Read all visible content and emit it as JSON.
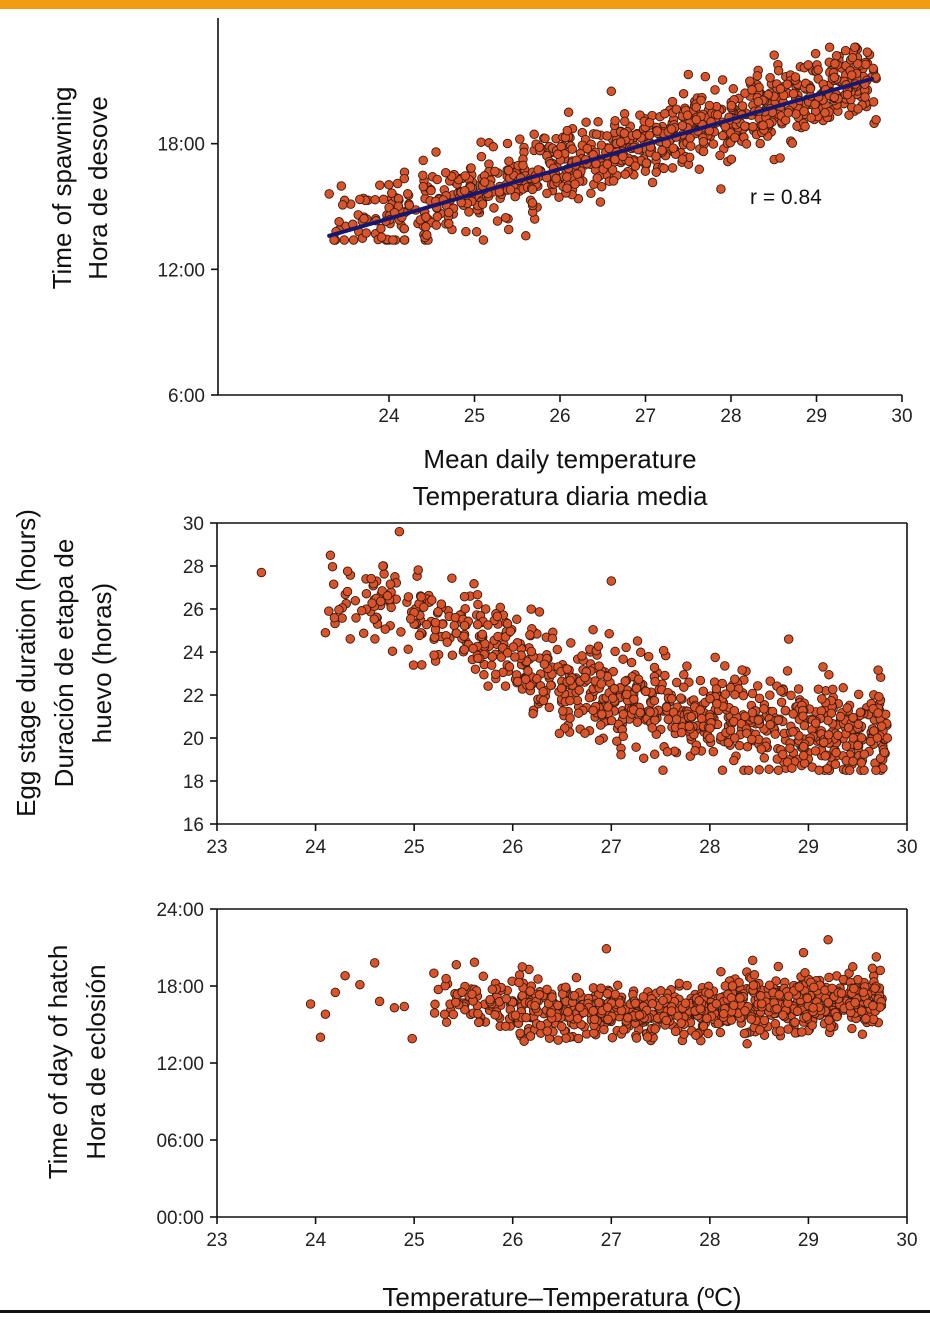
{
  "colors": {
    "top_bar": "#f39c12",
    "bottom_rule": "#111111",
    "marker_fill": "#d9542a",
    "marker_stroke": "#3a1a0e",
    "trend_line": "#16186f",
    "axis": "#111111"
  },
  "chart_data": [
    {
      "type": "scatter",
      "ylabel": [
        "Time of spawning",
        "Hora de desove"
      ],
      "xlabel": [
        "Mean daily temperature",
        "Temperatura diaria media"
      ],
      "xlim": [
        22.0,
        30.0
      ],
      "ylim": [
        6.0,
        24.0
      ],
      "xticks": [
        24,
        25,
        26,
        27,
        28,
        29,
        30
      ],
      "xtick_labels": [
        "24",
        "25",
        "26",
        "27",
        "28",
        "29",
        "30"
      ],
      "yticks": [
        6,
        12,
        18
      ],
      "ytick_labels": [
        "6:00",
        "12:00",
        "18:00"
      ],
      "annotation": "r = 0.84",
      "trend_line": {
        "x": [
          23.3,
          29.65
        ],
        "y": [
          13.6,
          21.1
        ]
      },
      "points": {
        "count": 950,
        "seed": 11,
        "model": {
          "kind": "linear",
          "slope": 1.16,
          "intercept": -13.3
        },
        "x_range": [
          23.3,
          29.7
        ],
        "noise": 0.85,
        "y_clip": [
          13.4,
          22.6
        ],
        "outliers": [
          [
            23.3,
            15.6
          ],
          [
            24.1,
            16.1
          ],
          [
            24.4,
            17.2
          ],
          [
            24.55,
            17.6
          ],
          [
            24.9,
            13.8
          ],
          [
            25.4,
            13.9
          ],
          [
            25.6,
            13.6
          ],
          [
            26.1,
            19.5
          ],
          [
            26.6,
            20.5
          ],
          [
            27.5,
            21.3
          ],
          [
            27.7,
            21.2
          ]
        ]
      }
    },
    {
      "type": "scatter",
      "ylabel": [
        "Egg stage duration (hours)",
        "Duración de etapa de",
        "huevo (horas)"
      ],
      "xlabel": [],
      "xlim": [
        23.0,
        30.0
      ],
      "ylim": [
        16.0,
        30.0
      ],
      "xticks": [
        23,
        24,
        25,
        26,
        27,
        28,
        29,
        30
      ],
      "xtick_labels": [
        "23",
        "24",
        "25",
        "26",
        "27",
        "28",
        "29",
        "30"
      ],
      "yticks": [
        16,
        18,
        20,
        22,
        24,
        26,
        28,
        30
      ],
      "ytick_labels": [
        "16",
        "18",
        "20",
        "22",
        "24",
        "26",
        "28",
        "30"
      ],
      "points": {
        "count": 950,
        "seed": 29,
        "model": {
          "kind": "piecewise",
          "knots": [
            [
              23.4,
              27.5
            ],
            [
              24.5,
              26.5
            ],
            [
              25.5,
              25.0
            ],
            [
              26.5,
              22.6
            ],
            [
              27.5,
              21.4
            ],
            [
              28.5,
              20.6
            ],
            [
              29.5,
              20.1
            ]
          ]
        },
        "x_range": [
          24.1,
          29.8
        ],
        "noise": 1.05,
        "y_clip": [
          18.5,
          28.0
        ],
        "outliers": [
          [
            23.45,
            27.7
          ],
          [
            24.15,
            28.5
          ],
          [
            24.85,
            29.6
          ],
          [
            24.1,
            24.9
          ],
          [
            27.0,
            27.3
          ],
          [
            28.8,
            24.6
          ],
          [
            29.7,
            20.0
          ],
          [
            29.8,
            20.0
          ]
        ]
      }
    },
    {
      "type": "scatter",
      "ylabel": [
        "Time of day of hatch",
        "Hora de eclosión"
      ],
      "xlabel": [
        "Temperature–Temperatura (ºC)"
      ],
      "xlim": [
        23.0,
        30.0
      ],
      "ylim": [
        0.0,
        24.0
      ],
      "xticks": [
        23,
        24,
        25,
        26,
        27,
        28,
        29,
        30
      ],
      "xtick_labels": [
        "23",
        "24",
        "25",
        "26",
        "27",
        "28",
        "29",
        "30"
      ],
      "yticks": [
        0,
        6,
        12,
        18,
        24
      ],
      "ytick_labels": [
        "00:00",
        "06:00",
        "12:00",
        "18:00",
        "24:00"
      ],
      "points": {
        "count": 1000,
        "seed": 47,
        "model": {
          "kind": "piecewise",
          "knots": [
            [
              23.9,
              17.0
            ],
            [
              25.5,
              16.8
            ],
            [
              26.5,
              16.0
            ],
            [
              27.5,
              16.0
            ],
            [
              28.5,
              16.7
            ],
            [
              29.7,
              16.8
            ]
          ]
        },
        "x_range": [
          25.2,
          29.75
        ],
        "noise": 1.05,
        "y_clip": [
          13.5,
          20.8
        ],
        "outliers": [
          [
            23.95,
            16.6
          ],
          [
            24.05,
            14.0
          ],
          [
            24.1,
            15.8
          ],
          [
            24.2,
            17.5
          ],
          [
            24.3,
            18.8
          ],
          [
            24.45,
            18.1
          ],
          [
            24.6,
            19.8
          ],
          [
            24.65,
            16.8
          ],
          [
            24.8,
            16.3
          ],
          [
            24.9,
            16.4
          ],
          [
            24.98,
            13.9
          ],
          [
            25.2,
            19.0
          ],
          [
            26.95,
            20.9
          ],
          [
            28.95,
            20.6
          ],
          [
            29.2,
            21.6
          ],
          [
            29.45,
            19.5
          ]
        ]
      }
    }
  ]
}
